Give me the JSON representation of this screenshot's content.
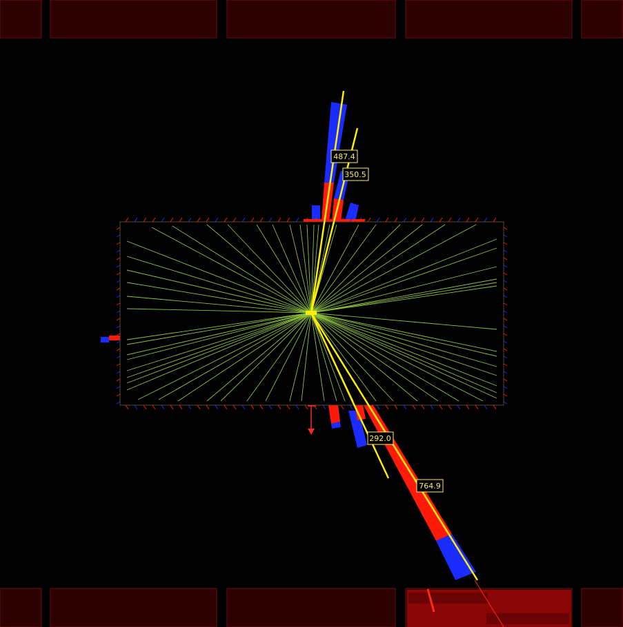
{
  "colors": {
    "background": "#000000",
    "muon_chamber_fill": "#2d0000",
    "muon_chamber_stroke": "#6a0f0f",
    "muon_chamber_hit": "#8a0606",
    "tracker_border": "#5a4a22",
    "tracks": "#8fc23d",
    "em_deposit": "#ff1a0a",
    "had_deposit": "#1a2cff",
    "jet_axis": "#ffee00",
    "label_text": "#ffee66",
    "label_bg": "#000000",
    "missing_et": "#ff2a1a"
  },
  "jets": [
    {
      "id": "jet-1",
      "label": "487.4"
    },
    {
      "id": "jet-2",
      "label": "350.5"
    },
    {
      "id": "jet-3",
      "label": "292.0"
    },
    {
      "id": "jet-4",
      "label": "764.9"
    }
  ],
  "icons": {
    "missing_et": "down-arrow-icon",
    "vertex": "vertex-marker-icon"
  }
}
